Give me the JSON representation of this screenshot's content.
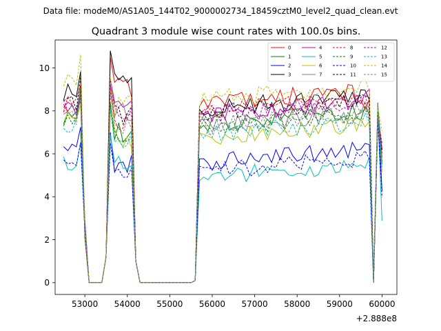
{
  "chart_data": {
    "type": "line",
    "suptitle": "Data file: modeM0/AS1A05_144T02_9000002734_18459cztM0_level2_quad_clean.evt",
    "title": "Quadrant 3 module wise count rates with 100.0s bins.",
    "xlabel": "",
    "ylabel": "",
    "x_offset_label": "+2.888e8",
    "xlim": [
      52300,
      60350
    ],
    "ylim": [
      -0.55,
      11.3
    ],
    "xticks": [
      53000,
      54000,
      55000,
      56000,
      57000,
      58000,
      59000,
      60000
    ],
    "xtick_labels": [
      "53000",
      "54000",
      "55000",
      "56000",
      "57000",
      "58000",
      "59000",
      "60000"
    ],
    "yticks": [
      0,
      2,
      4,
      6,
      8,
      10
    ],
    "ytick_labels": [
      "0",
      "2",
      "4",
      "6",
      "8",
      "10"
    ],
    "grid": false,
    "legend_position": "top-right",
    "time_segments": [
      {
        "start": 52500,
        "end": 54300
      },
      {
        "start": 55600,
        "end": 56500
      },
      {
        "start": 56500,
        "end": 59800
      },
      {
        "start": 59800,
        "end": 60000
      }
    ],
    "series": [
      {
        "name": "0",
        "color": "#ff0000",
        "dashed": false,
        "levels": [
          8.1,
          10.5,
          8.4,
          7.9
        ]
      },
      {
        "name": "1",
        "color": "#008000",
        "dashed": false,
        "levels": [
          7.8,
          8.4,
          7.4,
          7.6
        ]
      },
      {
        "name": "2",
        "color": "#0000ff",
        "dashed": false,
        "levels": [
          6.2,
          7.0,
          5.6,
          6.2
        ]
      },
      {
        "name": "3",
        "color": "#000000",
        "dashed": false,
        "levels": [
          8.8,
          10.8,
          8.1,
          8.3
        ]
      },
      {
        "name": "4",
        "color": "#bf00bf",
        "dashed": false,
        "levels": [
          8.0,
          9.5,
          7.8,
          8.2
        ]
      },
      {
        "name": "5",
        "color": "#00bfbf",
        "dashed": false,
        "levels": [
          5.6,
          6.9,
          4.9,
          5.1
        ]
      },
      {
        "name": "6",
        "color": "#bfbf00",
        "dashed": false,
        "levels": [
          7.6,
          8.1,
          6.8,
          7.0
        ]
      },
      {
        "name": "7",
        "color": "#808080",
        "dashed": false,
        "levels": [
          7.9,
          9.3,
          7.3,
          7.6
        ]
      },
      {
        "name": "8",
        "color": "#ff0000",
        "dashed": true,
        "levels": [
          8.3,
          9.0,
          8.0,
          8.3
        ]
      },
      {
        "name": "9",
        "color": "#008000",
        "dashed": true,
        "levels": [
          7.7,
          8.3,
          7.2,
          7.5
        ]
      },
      {
        "name": "10",
        "color": "#0000ff",
        "dashed": true,
        "levels": [
          5.9,
          6.5,
          5.2,
          5.8
        ]
      },
      {
        "name": "11",
        "color": "#000000",
        "dashed": true,
        "levels": [
          8.4,
          9.2,
          7.9,
          8.2
        ]
      },
      {
        "name": "12",
        "color": "#bf00bf",
        "dashed": true,
        "levels": [
          8.2,
          9.2,
          7.8,
          8.0
        ]
      },
      {
        "name": "13",
        "color": "#00bfbf",
        "dashed": true,
        "levels": [
          7.3,
          8.1,
          6.9,
          7.3
        ]
      },
      {
        "name": "14",
        "color": "#bfbf00",
        "dashed": true,
        "levels": [
          9.3,
          9.6,
          8.5,
          8.9
        ]
      },
      {
        "name": "15",
        "color": "#808080",
        "dashed": true,
        "levels": [
          7.8,
          8.8,
          7.3,
          7.6
        ]
      }
    ]
  }
}
